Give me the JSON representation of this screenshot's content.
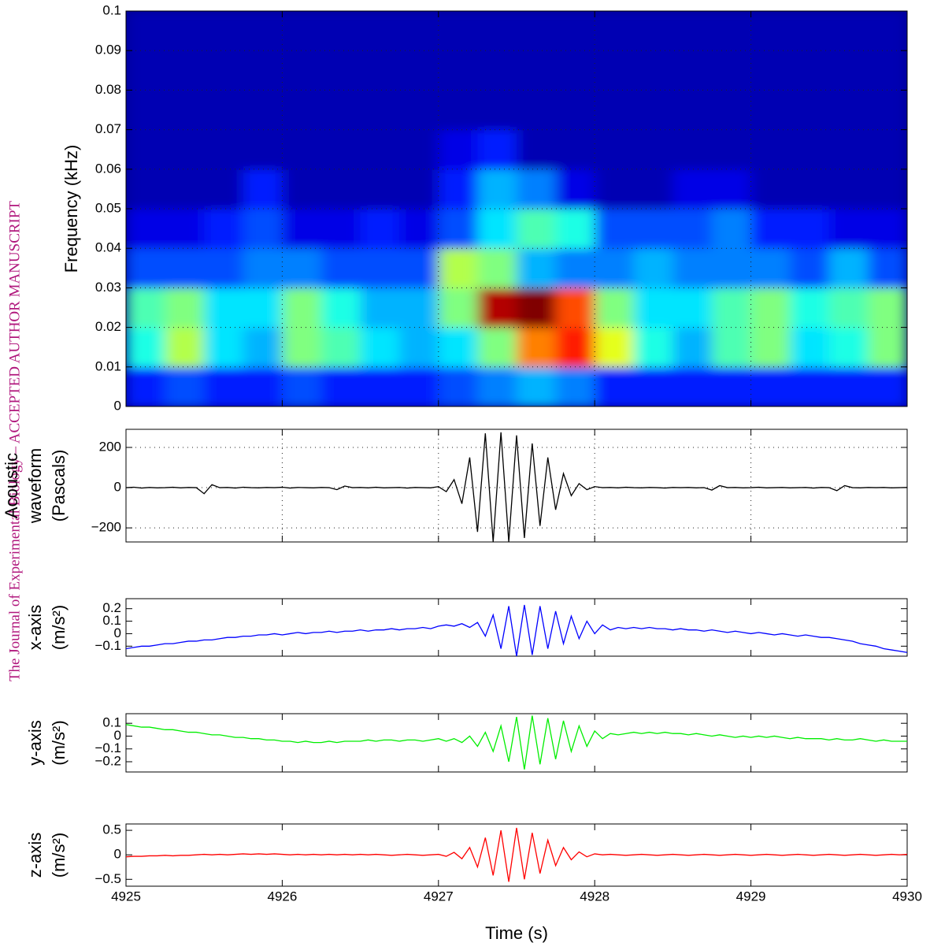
{
  "watermark": "The Journal of Experimental Biology – ACCEPTED AUTHOR MANUSCRIPT",
  "chart_data": [
    {
      "type": "heatmap",
      "ylabel": "Frequency (kHz)",
      "xlim": [
        4925,
        4930
      ],
      "xticks": [
        4925,
        4926,
        4927,
        4928,
        4929,
        4930
      ],
      "ylim": [
        0,
        0.1
      ],
      "yticks": [
        0,
        0.01,
        0.02,
        0.03,
        0.04,
        0.05,
        0.06,
        0.07,
        0.08,
        0.09,
        0.1
      ],
      "grid": true,
      "xbins": [
        4925,
        4925.25,
        4925.5,
        4925.75,
        4926,
        4926.25,
        4926.5,
        4926.75,
        4927,
        4927.25,
        4927.5,
        4927.75,
        4928,
        4928.25,
        4928.5,
        4928.75,
        4929,
        4929.25,
        4929.5,
        4929.75,
        4930
      ],
      "ybins": [
        0,
        0.01,
        0.02,
        0.03,
        0.04,
        0.05,
        0.06,
        0.07,
        0.08,
        0.09,
        0.1
      ],
      "z": [
        [
          0.15,
          0.2,
          0.15,
          0.15,
          0.2,
          0.15,
          0.15,
          0.15,
          0.2,
          0.25,
          0.3,
          0.25,
          0.15,
          0.15,
          0.15,
          0.15,
          0.15,
          0.15,
          0.15,
          0.15
        ],
        [
          0.4,
          0.55,
          0.35,
          0.3,
          0.5,
          0.45,
          0.35,
          0.3,
          0.35,
          0.5,
          0.75,
          0.85,
          0.6,
          0.4,
          0.3,
          0.45,
          0.5,
          0.35,
          0.4,
          0.5
        ],
        [
          0.45,
          0.5,
          0.35,
          0.35,
          0.5,
          0.4,
          0.3,
          0.3,
          0.5,
          0.95,
          1.0,
          0.8,
          0.5,
          0.35,
          0.35,
          0.45,
          0.5,
          0.4,
          0.45,
          0.5
        ],
        [
          0.2,
          0.2,
          0.2,
          0.25,
          0.25,
          0.2,
          0.2,
          0.2,
          0.55,
          0.5,
          0.3,
          0.25,
          0.25,
          0.3,
          0.25,
          0.25,
          0.25,
          0.2,
          0.3,
          0.2
        ],
        [
          0.1,
          0.1,
          0.15,
          0.2,
          0.1,
          0.1,
          0.15,
          0.1,
          0.2,
          0.35,
          0.45,
          0.4,
          0.2,
          0.2,
          0.2,
          0.25,
          0.15,
          0.15,
          0.1,
          0.1
        ],
        [
          0.05,
          0.05,
          0.05,
          0.15,
          0.05,
          0.05,
          0.05,
          0.05,
          0.15,
          0.3,
          0.25,
          0.1,
          0.05,
          0.05,
          0.1,
          0.1,
          0.05,
          0.05,
          0.05,
          0.05
        ],
        [
          0.05,
          0.05,
          0.05,
          0.05,
          0.05,
          0.05,
          0.05,
          0.05,
          0.1,
          0.15,
          0.05,
          0.05,
          0.05,
          0.05,
          0.05,
          0.05,
          0.05,
          0.05,
          0.05,
          0.05
        ],
        [
          0.05,
          0.05,
          0.05,
          0.05,
          0.05,
          0.05,
          0.05,
          0.05,
          0.05,
          0.05,
          0.05,
          0.05,
          0.05,
          0.05,
          0.05,
          0.05,
          0.05,
          0.05,
          0.05,
          0.05
        ],
        [
          0.05,
          0.05,
          0.05,
          0.05,
          0.05,
          0.05,
          0.05,
          0.05,
          0.05,
          0.05,
          0.05,
          0.05,
          0.05,
          0.05,
          0.05,
          0.05,
          0.05,
          0.05,
          0.05,
          0.05
        ],
        [
          0.05,
          0.05,
          0.05,
          0.05,
          0.05,
          0.05,
          0.05,
          0.05,
          0.05,
          0.05,
          0.05,
          0.05,
          0.05,
          0.05,
          0.05,
          0.05,
          0.05,
          0.05,
          0.05,
          0.05
        ]
      ]
    },
    {
      "type": "line",
      "xlabel": "Time (s)",
      "xlim": [
        4925,
        4930
      ],
      "xticks": [
        4925,
        4926,
        4927,
        4928,
        4929,
        4930
      ],
      "x": [
        4925,
        4925.05,
        4925.1,
        4925.15,
        4925.2,
        4925.25,
        4925.3,
        4925.35,
        4925.4,
        4925.45,
        4925.5,
        4925.55,
        4925.6,
        4925.65,
        4925.7,
        4925.75,
        4925.8,
        4925.85,
        4925.9,
        4925.95,
        4926,
        4926.05,
        4926.1,
        4926.15,
        4926.2,
        4926.25,
        4926.3,
        4926.35,
        4926.4,
        4926.45,
        4926.5,
        4926.55,
        4926.6,
        4926.65,
        4926.7,
        4926.75,
        4926.8,
        4926.85,
        4926.9,
        4926.95,
        4927,
        4927.05,
        4927.1,
        4927.15,
        4927.2,
        4927.25,
        4927.3,
        4927.35,
        4927.4,
        4927.45,
        4927.5,
        4927.55,
        4927.6,
        4927.65,
        4927.7,
        4927.75,
        4927.8,
        4927.85,
        4927.9,
        4927.95,
        4928,
        4928.05,
        4928.1,
        4928.15,
        4928.2,
        4928.25,
        4928.3,
        4928.35,
        4928.4,
        4928.45,
        4928.5,
        4928.55,
        4928.6,
        4928.65,
        4928.7,
        4928.75,
        4928.8,
        4928.85,
        4928.9,
        4928.95,
        4929,
        4929.05,
        4929.1,
        4929.15,
        4929.2,
        4929.25,
        4929.3,
        4929.35,
        4929.4,
        4929.45,
        4929.5,
        4929.55,
        4929.6,
        4929.65,
        4929.7,
        4929.75,
        4929.8,
        4929.85,
        4929.9,
        4929.95,
        4930
      ],
      "panels": [
        {
          "ylabel": [
            "Acoustic",
            "waveform",
            "(Pascals)"
          ],
          "ylim": [
            -270,
            290
          ],
          "yticks": [
            {
              "value": -200,
              "label": "−200"
            },
            0,
            200
          ],
          "grid": true,
          "series": [
            {
              "color": "#000000",
              "values": [
                0,
                2,
                -2,
                1,
                -1,
                0,
                2,
                -1,
                1,
                0,
                -30,
                15,
                0,
                1,
                -2,
                2,
                0,
                -1,
                1,
                0,
                2,
                -2,
                1,
                0,
                -1,
                1,
                0,
                -10,
                8,
                0,
                1,
                -1,
                2,
                -1,
                0,
                1,
                -2,
                1,
                0,
                -1,
                5,
                -20,
                40,
                -80,
                150,
                -220,
                270,
                -270,
                275,
                -270,
                260,
                -250,
                220,
                -190,
                150,
                -110,
                70,
                -40,
                20,
                -10,
                5,
                0,
                1,
                -1,
                2,
                0,
                -1,
                1,
                0,
                -2,
                1,
                0,
                1,
                -1,
                0,
                -12,
                10,
                0,
                1,
                -1,
                0,
                2,
                -1,
                0,
                1,
                -1,
                0,
                1,
                -2,
                1,
                0,
                -15,
                10,
                0,
                -1,
                1,
                0,
                1,
                -1,
                0,
                1
              ]
            }
          ]
        },
        {
          "ylabel": [
            "x-axis",
            "(m/s²)"
          ],
          "ylim": [
            -0.18,
            0.28
          ],
          "yticks": [
            {
              "value": -0.1,
              "label": "−0.1"
            },
            0,
            0.1,
            0.2
          ],
          "grid": false,
          "series": [
            {
              "color": "#0000ff",
              "values": [
                -0.12,
                -0.11,
                -0.1,
                -0.1,
                -0.09,
                -0.08,
                -0.08,
                -0.07,
                -0.06,
                -0.06,
                -0.05,
                -0.05,
                -0.04,
                -0.03,
                -0.03,
                -0.02,
                -0.02,
                -0.01,
                -0.01,
                0.0,
                -0.01,
                0.0,
                0.01,
                0.0,
                0.01,
                0.01,
                0.02,
                0.01,
                0.02,
                0.02,
                0.03,
                0.02,
                0.03,
                0.03,
                0.04,
                0.03,
                0.04,
                0.04,
                0.05,
                0.04,
                0.06,
                0.07,
                0.06,
                0.08,
                0.05,
                0.09,
                -0.02,
                0.15,
                -0.12,
                0.22,
                -0.18,
                0.23,
                -0.17,
                0.22,
                -0.12,
                0.18,
                -0.08,
                0.14,
                -0.04,
                0.1,
                0.0,
                0.07,
                0.03,
                0.05,
                0.04,
                0.05,
                0.04,
                0.05,
                0.04,
                0.04,
                0.03,
                0.04,
                0.03,
                0.03,
                0.02,
                0.03,
                0.02,
                0.01,
                0.02,
                0.01,
                0.0,
                0.01,
                0.0,
                -0.01,
                0.0,
                -0.01,
                -0.02,
                -0.01,
                -0.02,
                -0.03,
                -0.03,
                -0.04,
                -0.05,
                -0.06,
                -0.08,
                -0.09,
                -0.1,
                -0.12,
                -0.13,
                -0.14,
                -0.15
              ]
            }
          ]
        },
        {
          "ylabel": [
            "y-axis",
            "(m/s²)"
          ],
          "ylim": [
            -0.28,
            0.175
          ],
          "yticks": [
            {
              "value": -0.2,
              "label": "−0.2"
            },
            {
              "value": -0.1,
              "label": "−0.1"
            },
            0,
            0.1
          ],
          "grid": false,
          "series": [
            {
              "color": "#00ee00",
              "values": [
                0.09,
                0.08,
                0.07,
                0.07,
                0.06,
                0.05,
                0.05,
                0.04,
                0.03,
                0.03,
                0.02,
                0.01,
                0.01,
                0.0,
                -0.01,
                -0.01,
                -0.02,
                -0.02,
                -0.03,
                -0.03,
                -0.04,
                -0.04,
                -0.05,
                -0.04,
                -0.05,
                -0.05,
                -0.04,
                -0.05,
                -0.04,
                -0.04,
                -0.04,
                -0.03,
                -0.04,
                -0.03,
                -0.03,
                -0.04,
                -0.03,
                -0.03,
                -0.04,
                -0.03,
                -0.02,
                -0.04,
                -0.02,
                -0.05,
                0.0,
                -0.08,
                0.03,
                -0.12,
                0.08,
                -0.2,
                0.15,
                -0.26,
                0.16,
                -0.22,
                0.14,
                -0.18,
                0.12,
                -0.12,
                0.08,
                -0.08,
                0.04,
                -0.02,
                0.02,
                0.01,
                0.02,
                0.03,
                0.02,
                0.03,
                0.02,
                0.03,
                0.02,
                0.02,
                0.01,
                0.02,
                0.01,
                0.0,
                0.01,
                0.0,
                -0.01,
                0.0,
                -0.01,
                0.0,
                -0.01,
                0.0,
                -0.01,
                -0.02,
                -0.01,
                -0.02,
                -0.02,
                -0.02,
                -0.03,
                -0.02,
                -0.03,
                -0.03,
                -0.02,
                -0.03,
                -0.04,
                -0.03,
                -0.04,
                -0.04,
                -0.04
              ]
            }
          ]
        },
        {
          "ylabel": [
            "z-axis",
            "(m/s²)"
          ],
          "ylim": [
            -0.64,
            0.63
          ],
          "yticks": [
            {
              "value": -0.5,
              "label": "−0.5"
            },
            0,
            0.5
          ],
          "grid": false,
          "series": [
            {
              "color": "#ff0000",
              "values": [
                -0.04,
                -0.03,
                -0.03,
                -0.02,
                -0.02,
                -0.01,
                -0.02,
                -0.01,
                -0.01,
                0.0,
                0.01,
                0.0,
                0.01,
                0.0,
                0.01,
                0.02,
                0.01,
                0.02,
                0.01,
                0.02,
                0.01,
                0.0,
                0.01,
                0.0,
                0.01,
                0.0,
                0.01,
                0.0,
                0.01,
                0.0,
                0.01,
                0.0,
                0.01,
                0.0,
                -0.01,
                0.0,
                0.01,
                0.0,
                -0.01,
                0.0,
                0.01,
                -0.03,
                0.05,
                -0.08,
                0.15,
                -0.25,
                0.35,
                -0.42,
                0.5,
                -0.55,
                0.55,
                -0.5,
                0.45,
                -0.38,
                0.3,
                -0.22,
                0.15,
                -0.1,
                0.06,
                -0.04,
                0.02,
                0.0,
                0.01,
                0.0,
                -0.01,
                0.0,
                0.01,
                0.0,
                -0.01,
                0.0,
                0.01,
                0.0,
                -0.01,
                0.0,
                0.01,
                0.0,
                -0.01,
                0.0,
                0.01,
                0.0,
                -0.01,
                0.0,
                0.01,
                0.0,
                -0.01,
                0.0,
                0.01,
                0.0,
                -0.01,
                0.0,
                0.01,
                0.0,
                -0.01,
                0.0,
                0.01,
                0.0,
                -0.01,
                0.0,
                0.01,
                0.0,
                0.01
              ]
            }
          ]
        }
      ]
    }
  ]
}
